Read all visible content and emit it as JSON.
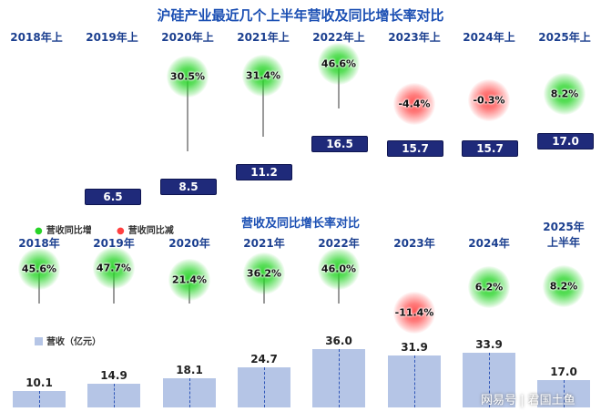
{
  "top_chart": {
    "title": "沪硅产业最近几个上半年营收及同比增长率对比",
    "chart_data": {
      "type": "bar",
      "categories": [
        "2018年上",
        "2019年上",
        "2020年上",
        "2021年上",
        "2022年上",
        "2023年上",
        "2024年上",
        "2025年上"
      ],
      "series": [
        {
          "values": [
            null,
            6.5,
            8.5,
            11.2,
            16.5,
            15.7,
            15.7,
            17.0
          ]
        },
        {
          "values": [
            null,
            null,
            30.5,
            31.4,
            46.6,
            -4.4,
            -0.3,
            8.2
          ]
        }
      ],
      "value_labels": [
        "",
        "6.5",
        "8.5",
        "11.2",
        "16.5",
        "15.7",
        "15.7",
        "17.0"
      ],
      "growth_labels": [
        "",
        "",
        "30.5%",
        "31.4%",
        "46.6%",
        "-4.4%",
        "-0.3%",
        "8.2%"
      ],
      "colors": {
        "box": "#1f2a7a",
        "positive": "#27d427",
        "negative": "#ff5050"
      }
    }
  },
  "bottom_chart": {
    "title": "营收及同比增长率对比",
    "chart_data": {
      "type": "bar",
      "categories": [
        "2018年",
        "2019年",
        "2020年",
        "2021年",
        "2022年",
        "2023年",
        "2024年",
        "2025年上半年"
      ],
      "category_lines": [
        [
          "2018年"
        ],
        [
          "2019年"
        ],
        [
          "2020年"
        ],
        [
          "2021年"
        ],
        [
          "2022年"
        ],
        [
          "2023年"
        ],
        [
          "2024年"
        ],
        [
          "2025年",
          "上半年"
        ]
      ],
      "series": [
        {
          "name": "营收（亿元）",
          "values": [
            10.1,
            14.9,
            18.1,
            24.7,
            36.0,
            31.9,
            33.9,
            17.0
          ]
        },
        {
          "values": [
            45.6,
            47.7,
            21.4,
            36.2,
            46.0,
            -11.4,
            6.2,
            8.2
          ]
        }
      ],
      "value_labels": [
        "10.1",
        "14.9",
        "18.1",
        "24.7",
        "36.0",
        "31.9",
        "33.9",
        "17.0"
      ],
      "growth_labels": [
        "45.6%",
        "47.7%",
        "21.4%",
        "36.2%",
        "46.0%",
        "-11.4%",
        "6.2%",
        "8.2%"
      ],
      "legend": {
        "increase_label": "营收同比增",
        "decrease_label": "营收同比减",
        "revenue_label": "营收（亿元）"
      },
      "colors": {
        "bar": "#b5c5e6",
        "positive": "#27d427",
        "negative": "#ff5050"
      }
    }
  },
  "watermark": "网易号 | 君国土鱼"
}
